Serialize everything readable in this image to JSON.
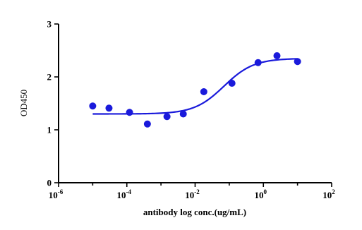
{
  "chart_data": {
    "type": "scatter",
    "title": "",
    "xlabel": "antibody log conc.(ug/mL)",
    "ylabel": "OD450",
    "x_scale": "log10",
    "xlim": [
      1e-06,
      100
    ],
    "ylim": [
      0,
      3
    ],
    "x_ticks": [
      {
        "base": "10",
        "exp": "-6",
        "value": 1e-06
      },
      {
        "base": "10",
        "exp": "-4",
        "value": 0.0001
      },
      {
        "base": "10",
        "exp": "-2",
        "value": 0.01
      },
      {
        "base": "10",
        "exp": "0",
        "value": 1
      },
      {
        "base": "10",
        "exp": "2",
        "value": 100
      }
    ],
    "y_ticks": [
      "0",
      "1",
      "2",
      "3"
    ],
    "grid": false,
    "series": [
      {
        "color": "#1a1adb",
        "points": [
          {
            "x": 1e-05,
            "y": 1.45
          },
          {
            "x": 3e-05,
            "y": 1.41
          },
          {
            "x": 0.00012,
            "y": 1.33
          },
          {
            "x": 0.0004,
            "y": 1.11
          },
          {
            "x": 0.0015,
            "y": 1.25
          },
          {
            "x": 0.0045,
            "y": 1.3
          },
          {
            "x": 0.018,
            "y": 1.72
          },
          {
            "x": 0.12,
            "y": 1.88
          },
          {
            "x": 0.7,
            "y": 2.27
          },
          {
            "x": 2.5,
            "y": 2.4
          },
          {
            "x": 10,
            "y": 2.29
          }
        ],
        "fit": {
          "model": "4PL",
          "bottom": 1.3,
          "top": 2.35,
          "ec50": 0.07,
          "hill": 1.0
        }
      }
    ]
  }
}
